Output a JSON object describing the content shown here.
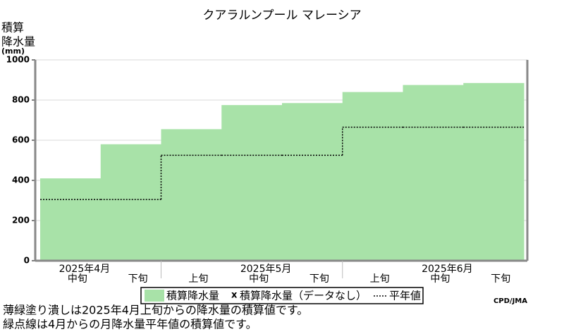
{
  "chart_data": {
    "type": "step-area",
    "title": "クアラルンプール マレーシア",
    "ylabel": [
      "積算",
      "降水量",
      "(mm)"
    ],
    "categories": [
      "中旬",
      "下旬",
      "上旬",
      "中旬",
      "下旬",
      "上旬",
      "中旬",
      "下旬"
    ],
    "months": [
      "2025年4月",
      null,
      null,
      "2025年5月",
      null,
      null,
      "2025年6月",
      null
    ],
    "series": [
      {
        "name": "積算降水量",
        "color": "#a8e2a8",
        "values": [
          410,
          580,
          655,
          775,
          785,
          840,
          875,
          885
        ]
      },
      {
        "name": "平年値",
        "color": "#000000",
        "style": "dotted",
        "values": [
          305,
          305,
          525,
          525,
          525,
          665,
          665,
          665
        ]
      }
    ],
    "legend_missing": "積算降水量（データなし）",
    "legend_missing_marker": "x",
    "ylim": [
      0,
      1000
    ],
    "yticks": [
      0,
      200,
      400,
      600,
      800,
      1000
    ],
    "grid": true,
    "credit": "CPD/JMA",
    "notes": [
      "薄緑塗り潰しは2025年4月上旬からの降水量の積算値です。",
      "緑点線は4月からの月降水量平年値の積算値です。"
    ]
  }
}
